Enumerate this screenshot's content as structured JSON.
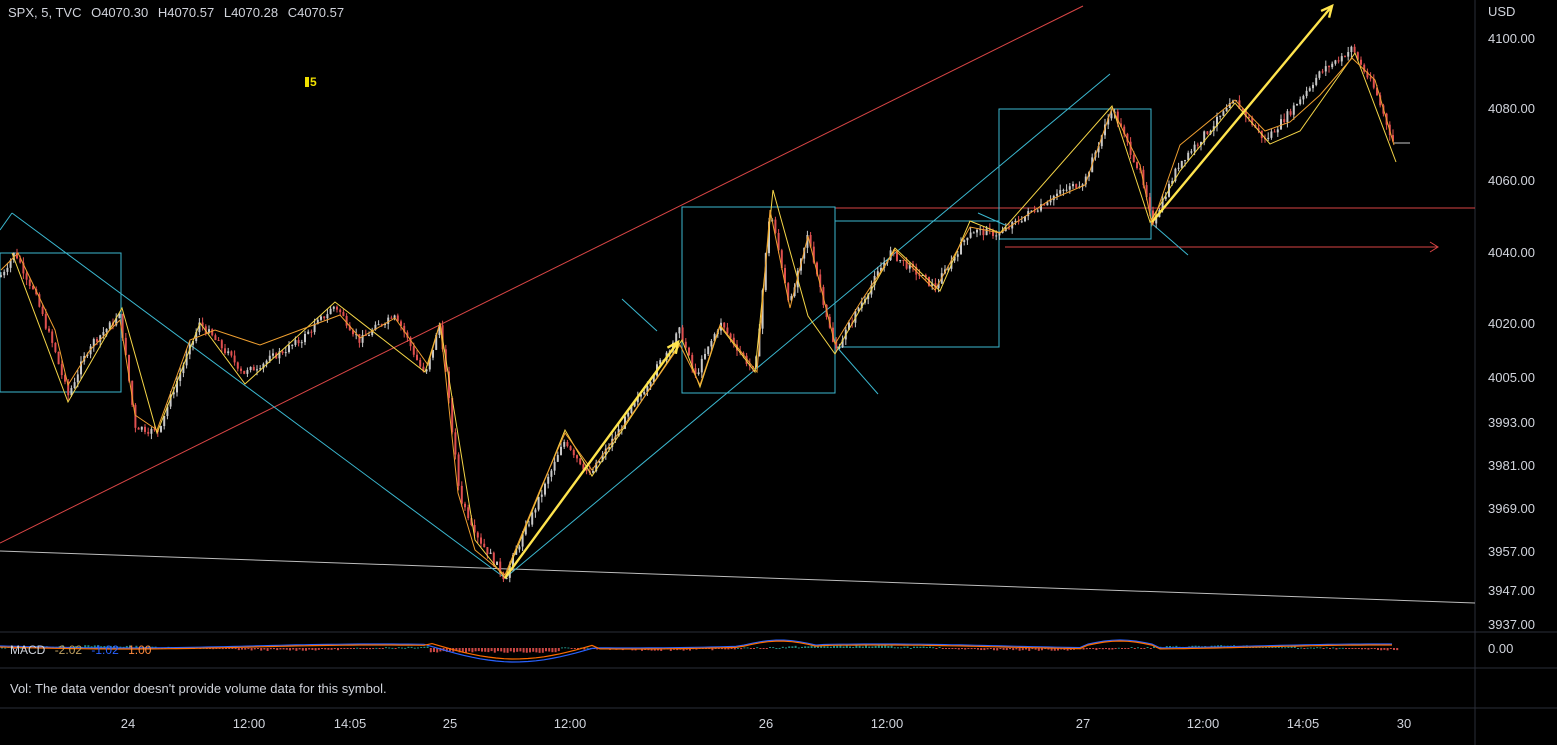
{
  "header": {
    "symbol": "SPX, 5, TVC",
    "open": "O4070.30",
    "high": "H4070.57",
    "low": "L4070.28",
    "close": "C4070.57"
  },
  "marker_label": "5",
  "macd_legend": {
    "name": "MACD",
    "v1": "-2.02",
    "v2": "-1.02",
    "v3": "1.00"
  },
  "volume_note": "Vol: The data vendor doesn't provide volume data for this symbol.",
  "colors": {
    "background": "#000000",
    "candle_up": "#c8c8c8",
    "candle_down": "#e05050",
    "zigzag": "#f5d547",
    "zigzag_minor": "#f0a030",
    "cyan": "#3bb8d0",
    "red_line": "#d84545",
    "white_line": "#bdbdbd",
    "macd": "#2962ff",
    "signal": "#ff6d00"
  },
  "chart_data": {
    "type": "candlestick",
    "symbol": "SPX",
    "timeframe": "5",
    "currency": "USD",
    "y_ticks": [
      "4100.00",
      "4080.00",
      "4060.00",
      "4040.00",
      "4020.00",
      "4005.00",
      "3993.00",
      "3981.00",
      "3969.00",
      "3957.00",
      "3947.00",
      "3937.00"
    ],
    "x_ticks": [
      "24",
      "12:00",
      "14:05",
      "25",
      "12:00",
      "26",
      "12:00",
      "27",
      "12:00",
      "14:05",
      "30"
    ],
    "last_close": 4070.57,
    "zigzag_points": [
      {
        "x": "24",
        "y": 4040
      },
      {
        "x": "24",
        "y": 4000
      },
      {
        "x": "24",
        "y": 4022
      },
      {
        "x": "24",
        "y": 3990
      },
      {
        "x": "12:00",
        "y": 4020
      },
      {
        "x": "12:00",
        "y": 4010
      },
      {
        "x": "14:05",
        "y": 4025
      },
      {
        "x": "14:05",
        "y": 4010
      },
      {
        "x": "25",
        "y": 4022
      },
      {
        "x": "25",
        "y": 3950
      },
      {
        "x": "12:00",
        "y": 3990
      },
      {
        "x": "12:00",
        "y": 3978
      },
      {
        "x": "26",
        "y": 4018
      },
      {
        "x": "26",
        "y": 4055
      },
      {
        "x": "26",
        "y": 4010
      },
      {
        "x": "12:00",
        "y": 4040
      },
      {
        "x": "12:00",
        "y": 4030
      },
      {
        "x": "27",
        "y": 4045
      },
      {
        "x": "27",
        "y": 4080
      },
      {
        "x": "27",
        "y": 4050
      },
      {
        "x": "12:00",
        "y": 4078
      },
      {
        "x": "14:05",
        "y": 4073
      },
      {
        "x": "14:05",
        "y": 4096
      },
      {
        "x": "30",
        "y": 4065
      }
    ],
    "macd_zero": "0.00",
    "grid": false,
    "legend": "top-left"
  }
}
